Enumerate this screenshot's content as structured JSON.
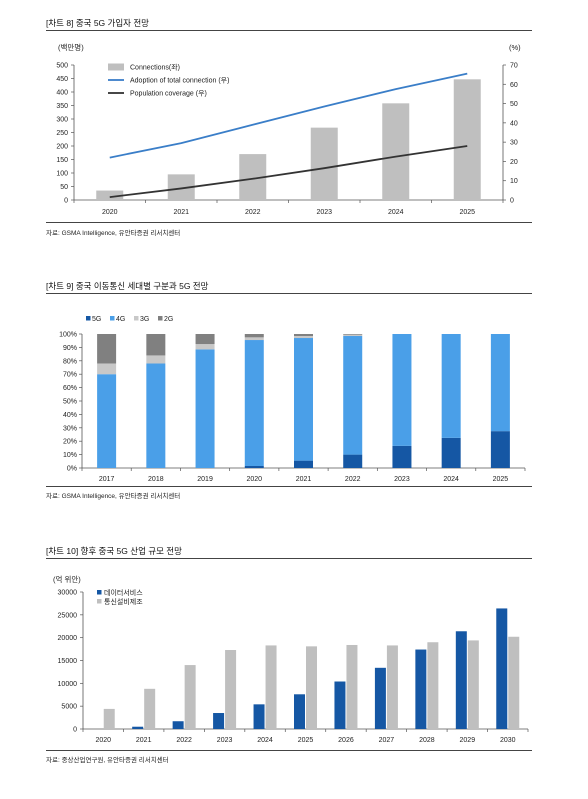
{
  "chart_data": [
    {
      "type": "bar",
      "title": "[차트 8] 중국 5G 가입자 전망",
      "ylabel_left": "(백만명)",
      "ylabel_right": "(%)",
      "categories": [
        "2020",
        "2021",
        "2022",
        "2023",
        "2024",
        "2025"
      ],
      "ylim_left": [
        0,
        500
      ],
      "ylim_right": [
        0,
        70
      ],
      "yticks_left": [
        "0",
        "50",
        "100",
        "150",
        "200",
        "250",
        "300",
        "350",
        "400",
        "450",
        "500"
      ],
      "yticks_right": [
        "0",
        "10",
        "20",
        "30",
        "40",
        "50",
        "60",
        "70"
      ],
      "legend_position": "top-left",
      "series": [
        {
          "name": "Connections(좌)",
          "kind": "bar",
          "axis": "left",
          "color": "#bfbfbf",
          "values": [
            35,
            95,
            170,
            268,
            358,
            447
          ]
        },
        {
          "name": "Adoption of total connection (우)",
          "kind": "line",
          "axis": "right",
          "color": "#3a7ec8",
          "values": [
            22,
            29.5,
            39,
            48.5,
            57.5,
            65.5
          ]
        },
        {
          "name": "Population coverage (우)",
          "kind": "line",
          "axis": "right",
          "color": "#333333",
          "values": [
            1.5,
            6,
            11,
            16.5,
            22.5,
            28
          ]
        }
      ],
      "source": "자료: GSMA Intelligence, 유안타증권 리서치센터"
    },
    {
      "type": "bar",
      "title": "[차트 9] 중국 이동통신 세대별 구분과 5G 전망",
      "categories": [
        "2017",
        "2018",
        "2019",
        "2020",
        "2021",
        "2022",
        "2023",
        "2024",
        "2025"
      ],
      "ylim": [
        0,
        100
      ],
      "yticks": [
        "0%",
        "10%",
        "20%",
        "30%",
        "40%",
        "50%",
        "60%",
        "70%",
        "80%",
        "90%",
        "100%"
      ],
      "stacked": true,
      "legend_position": "top-left",
      "series": [
        {
          "name": "5G",
          "color": "#1557a4",
          "values": [
            0,
            0,
            0,
            1.5,
            5.5,
            10,
            16.5,
            22.5,
            27.5
          ]
        },
        {
          "name": "4G",
          "color": "#4a9fe8",
          "values": [
            70,
            78,
            88.5,
            94,
            91.5,
            88.5,
            83.5,
            77.5,
            72.5
          ]
        },
        {
          "name": "3G",
          "color": "#c8c8c8",
          "values": [
            8,
            6,
            4,
            2,
            1.5,
            1,
            0,
            0,
            0
          ]
        },
        {
          "name": "2G",
          "color": "#808080",
          "values": [
            22,
            16,
            7.5,
            2.5,
            1.5,
            0.5,
            0,
            0,
            0
          ]
        }
      ],
      "source": "자료: GSMA Intelligence, 유안타증권 리서치센터"
    },
    {
      "type": "bar",
      "title": "[차트 10] 향후 중국 5G 산업 규모 전망",
      "ylabel": "(억 위안)",
      "categories": [
        "2020",
        "2021",
        "2022",
        "2023",
        "2024",
        "2025",
        "2026",
        "2027",
        "2028",
        "2029",
        "2030"
      ],
      "ylim": [
        0,
        30000
      ],
      "yticks": [
        "0",
        "5000",
        "10000",
        "15000",
        "20000",
        "25000",
        "30000"
      ],
      "legend_position": "top-left",
      "series": [
        {
          "name": "데이터서비스",
          "color": "#1557a4",
          "values": [
            0,
            500,
            1700,
            3500,
            5400,
            7600,
            10400,
            13400,
            17400,
            21400,
            26400
          ]
        },
        {
          "name": "통신설비제조",
          "color": "#bfbfbf",
          "values": [
            4400,
            8800,
            14000,
            17300,
            18300,
            18100,
            18400,
            18300,
            19000,
            19400,
            20200
          ]
        }
      ],
      "source": "자료: 중상산업연구원, 유안타증권 리서치센터"
    }
  ]
}
